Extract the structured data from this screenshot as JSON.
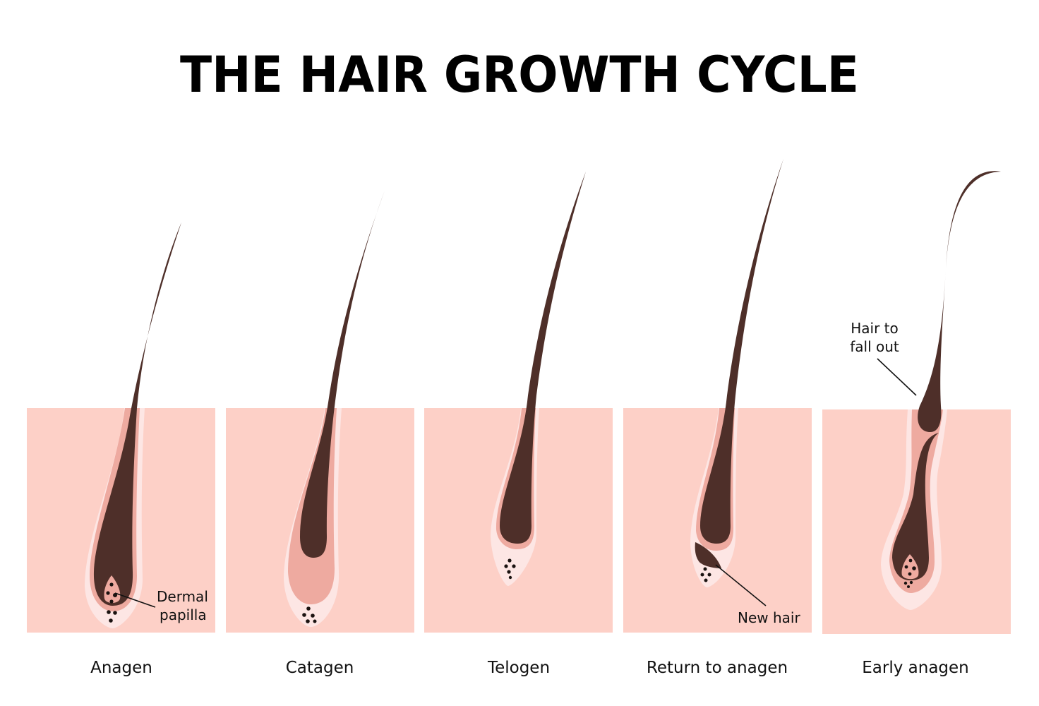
{
  "title": "THE HAIR GROWTH CYCLE",
  "stages": [
    {
      "label": "Anagen"
    },
    {
      "label": "Catagen"
    },
    {
      "label": "Telogen"
    },
    {
      "label": "Return to anagen"
    },
    {
      "label": "Early anagen"
    }
  ],
  "annotations": {
    "dermal_papilla_line1": "Dermal",
    "dermal_papilla_line2": "papilla",
    "new_hair": "New hair",
    "hair_to_fall_out_line1": "Hair to",
    "hair_to_fall_out_line2": "fall out"
  },
  "colors": {
    "skin": "#fdd0c7",
    "sheath": "#eeaaa0",
    "outer_sheath": "#fde6e4",
    "hair": "#4e2f29"
  }
}
